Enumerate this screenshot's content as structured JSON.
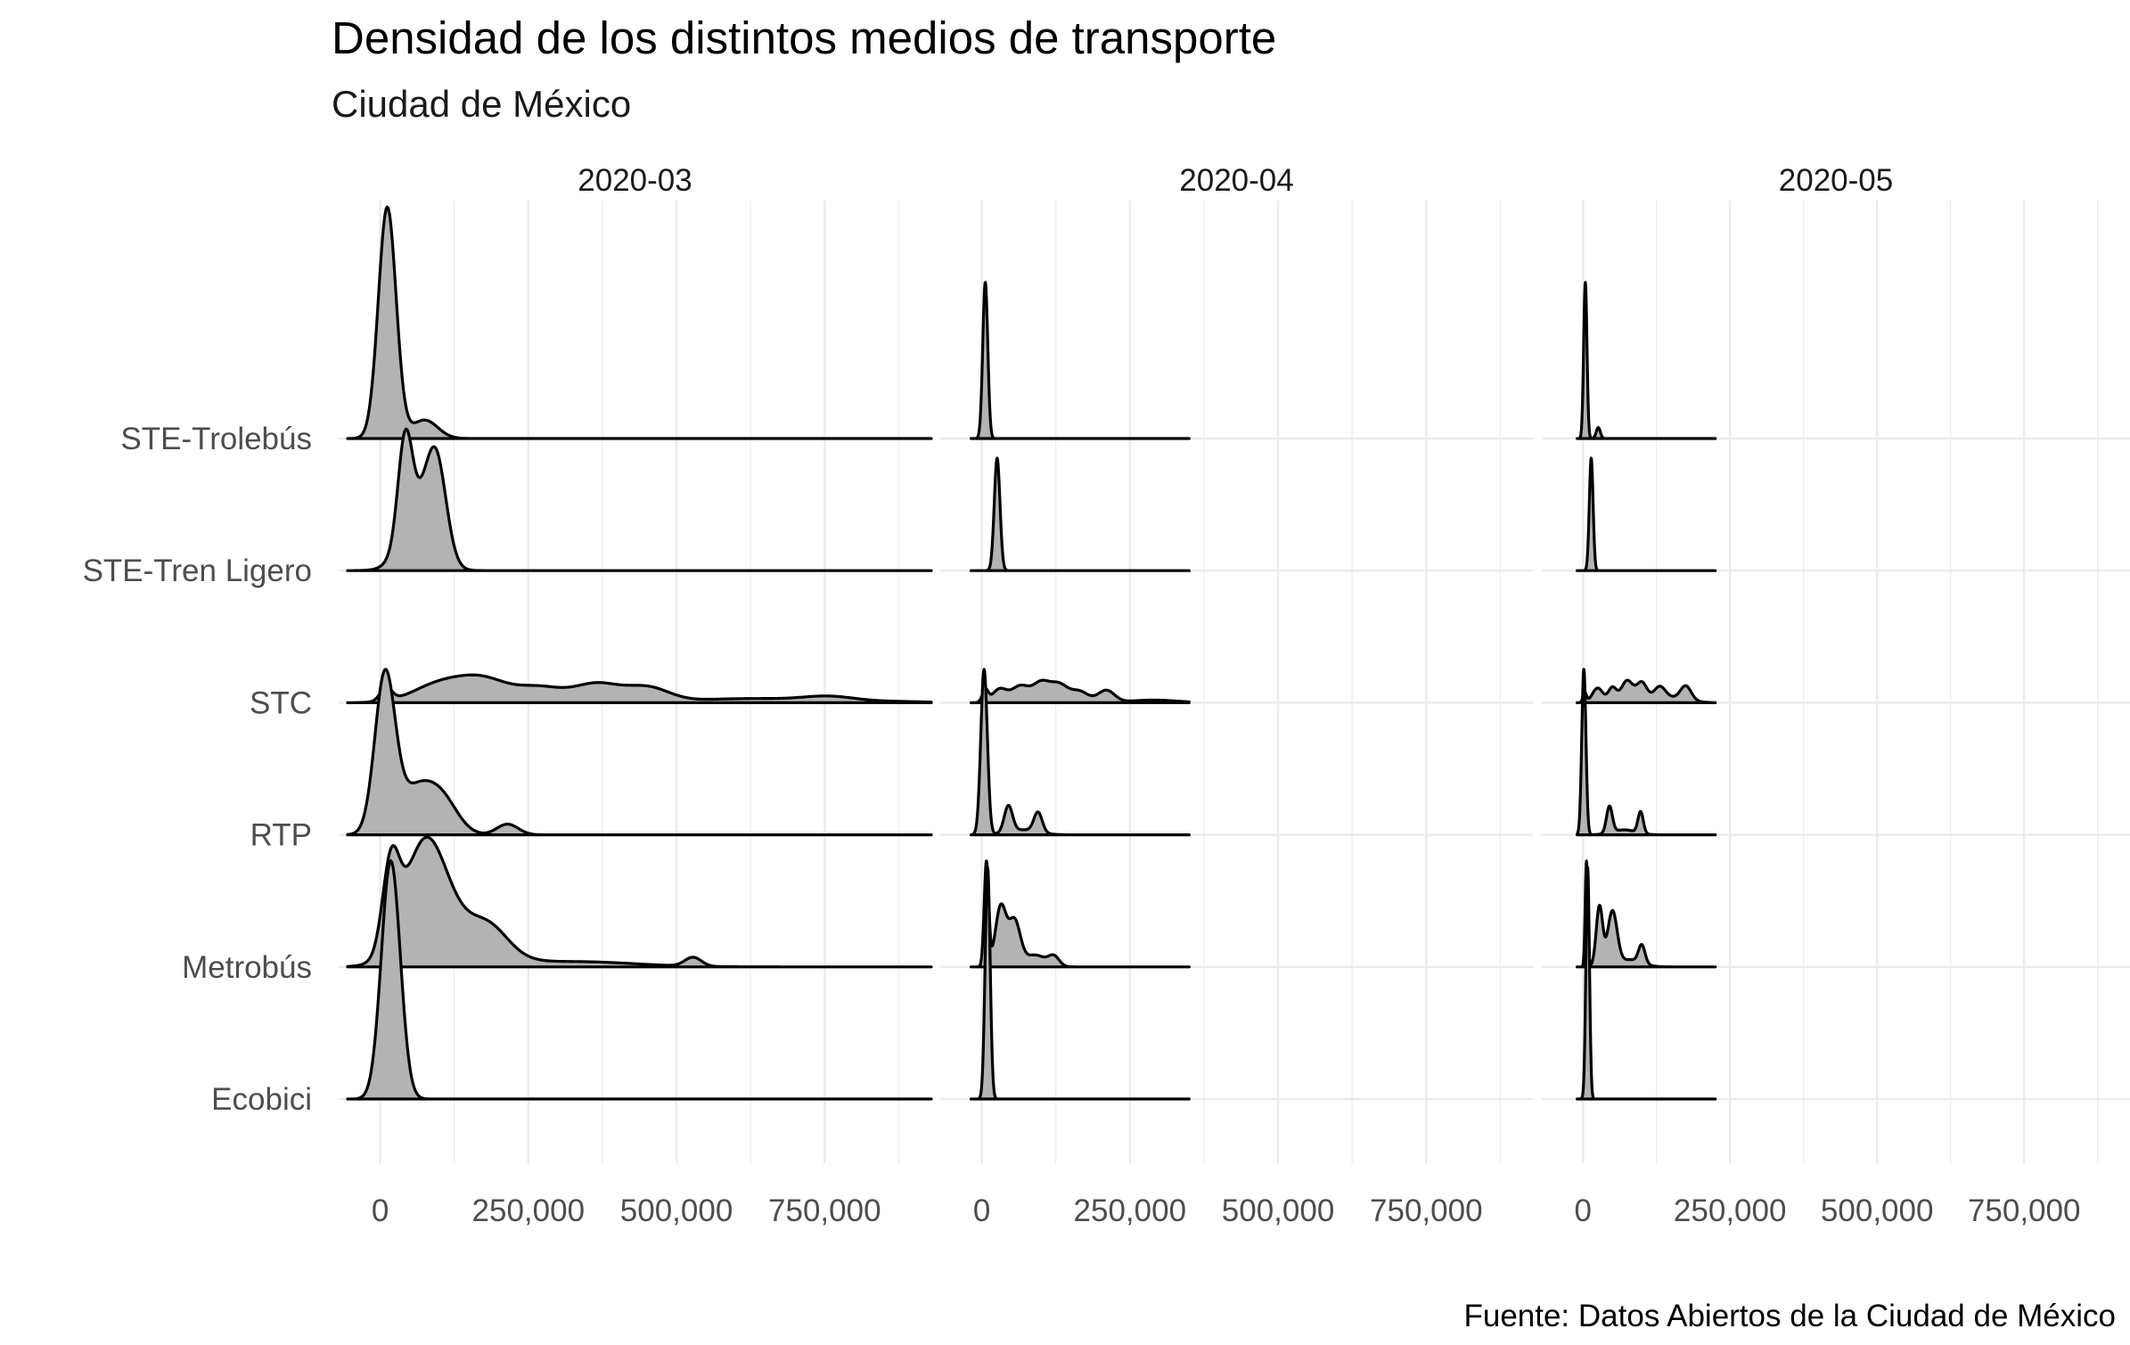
{
  "chart_data": {
    "type": "ridgeline",
    "title": "Densidad de los distintos medios de transporte",
    "subtitle": "Ciudad de México",
    "caption": "Fuente: Datos Abiertos de la Ciudad de México",
    "categories": [
      "Ecobici",
      "Metrobús",
      "RTP",
      "STC",
      "STE-Tren Ligero",
      "STE-Trolebús"
    ],
    "x_ticks": [
      0,
      250000,
      500000,
      750000
    ],
    "x_tick_labels": [
      "0",
      "250,000",
      "500,000",
      "750,000"
    ],
    "xlim": [
      -70000,
      930000
    ],
    "panels": [
      {
        "label": "2020-03",
        "series": [
          {
            "category": "Ecobici",
            "range": [
              -55000,
              930000
            ],
            "height": 1.8,
            "components": [
              [
                18000,
                16000,
                1.0
              ]
            ]
          },
          {
            "category": "Metrobús",
            "range": [
              -55000,
              930000
            ],
            "height": 0.98,
            "components": [
              [
                18000,
                14000,
                0.55
              ],
              [
                75000,
                36000,
                0.72
              ],
              [
                185000,
                32000,
                0.14
              ],
              [
                130000,
                60000,
                0.22
              ],
              [
                330000,
                100000,
                0.035
              ],
              [
                528000,
                14000,
                0.06
              ]
            ]
          },
          {
            "category": "RTP",
            "range": [
              -55000,
              930000
            ],
            "height": 1.25,
            "components": [
              [
                8000,
                17000,
                1.0
              ],
              [
                65000,
                35000,
                0.32
              ],
              [
                110000,
                25000,
                0.13
              ],
              [
                215000,
                18000,
                0.07
              ]
            ]
          },
          {
            "category": "STC",
            "range": [
              -55000,
              930000
            ],
            "height": 0.21,
            "components": [
              [
                10000,
                10000,
                0.52
              ],
              [
                100000,
                45000,
                0.72
              ],
              [
                175000,
                42000,
                0.85
              ],
              [
                270000,
                40000,
                0.58
              ],
              [
                365000,
                38000,
                0.72
              ],
              [
                450000,
                38000,
                0.6
              ],
              [
                575000,
                60000,
                0.12
              ],
              [
                755000,
                45000,
                0.24
              ],
              [
                660000,
                50000,
                0.1
              ],
              [
                860000,
                60000,
                0.05
              ]
            ]
          },
          {
            "category": "STE-Tren Ligero",
            "range": [
              -55000,
              930000
            ],
            "height": 1.07,
            "components": [
              [
                42000,
                12000,
                0.82
              ],
              [
                95000,
                17000,
                0.74
              ],
              [
                65000,
                28000,
                0.5
              ]
            ]
          },
          {
            "category": "STE-Trolebús",
            "range": [
              -55000,
              930000
            ],
            "height": 1.75,
            "components": [
              [
                12000,
                15000,
                1.0
              ],
              [
                75000,
                22000,
                0.08
              ]
            ]
          }
        ]
      },
      {
        "label": "2020-04",
        "series": [
          {
            "category": "Ecobici",
            "range": [
              -18000,
              350000
            ],
            "height": 1.75,
            "components": [
              [
                10000,
                4200,
                1.0
              ]
            ]
          },
          {
            "category": "Metrobús",
            "range": [
              -18000,
              350000
            ],
            "height": 0.8,
            "components": [
              [
                8000,
                3800,
                0.88
              ],
              [
                32000,
                9000,
                0.5
              ],
              [
                55000,
                10000,
                0.38
              ],
              [
                90000,
                18000,
                0.1
              ],
              [
                122000,
                9000,
                0.08
              ]
            ]
          },
          {
            "category": "RTP",
            "range": [
              -18000,
              350000
            ],
            "height": 1.25,
            "components": [
              [
                4000,
                5500,
                1.0
              ],
              [
                45000,
                7000,
                0.16
              ],
              [
                95000,
                7000,
                0.12
              ],
              [
                70000,
                25000,
                0.03
              ]
            ]
          },
          {
            "category": "STC",
            "range": [
              -18000,
              350000
            ],
            "height": 0.17,
            "components": [
              [
                6000,
                5000,
                0.55
              ],
              [
                30000,
                12000,
                0.6
              ],
              [
                65000,
                15000,
                0.75
              ],
              [
                100000,
                14000,
                0.85
              ],
              [
                130000,
                15000,
                0.8
              ],
              [
                165000,
                15000,
                0.5
              ],
              [
                210000,
                14000,
                0.55
              ],
              [
                290000,
                40000,
                0.12
              ]
            ]
          },
          {
            "category": "STE-Tren Ligero",
            "range": [
              -18000,
              350000
            ],
            "height": 0.85,
            "components": [
              [
                26000,
                4800,
                1.0
              ]
            ]
          },
          {
            "category": "STE-Trolebús",
            "range": [
              -18000,
              350000
            ],
            "height": 1.18,
            "components": [
              [
                6000,
                4200,
                1.0
              ]
            ]
          }
        ]
      },
      {
        "label": "2020-05",
        "series": [
          {
            "category": "Ecobici",
            "range": [
              -10000,
              225000
            ],
            "height": 1.75,
            "components": [
              [
                8000,
                3000,
                1.0
              ]
            ]
          },
          {
            "category": "Metrobús",
            "range": [
              -10000,
              225000
            ],
            "height": 0.8,
            "components": [
              [
                6000,
                2200,
                0.88
              ],
              [
                28000,
                5500,
                0.5
              ],
              [
                50000,
                8000,
                0.45
              ],
              [
                100000,
                5500,
                0.15
              ],
              [
                80000,
                20000,
                0.06
              ]
            ]
          },
          {
            "category": "RTP",
            "range": [
              -10000,
              225000
            ],
            "height": 1.25,
            "components": [
              [
                1500,
                3500,
                1.0
              ],
              [
                45000,
                5000,
                0.16
              ],
              [
                98000,
                4500,
                0.13
              ],
              [
                70000,
                20000,
                0.03
              ]
            ]
          },
          {
            "category": "STC",
            "range": [
              -10000,
              225000
            ],
            "height": 0.17,
            "components": [
              [
                3000,
                3000,
                0.4
              ],
              [
                25000,
                9000,
                0.6
              ],
              [
                50000,
                7000,
                0.6
              ],
              [
                75000,
                10000,
                0.9
              ],
              [
                100000,
                9000,
                0.8
              ],
              [
                130000,
                10000,
                0.55
              ],
              [
                175000,
                9000,
                0.55
              ],
              [
                155000,
                25000,
                0.2
              ]
            ]
          },
          {
            "category": "STE-Tren Ligero",
            "range": [
              -10000,
              225000
            ],
            "height": 0.85,
            "components": [
              [
                14000,
                3200,
                1.0
              ]
            ]
          },
          {
            "category": "STE-Trolebús",
            "range": [
              -10000,
              225000
            ],
            "height": 1.18,
            "components": [
              [
                4000,
                2800,
                1.0
              ],
              [
                26000,
                3500,
                0.07
              ]
            ]
          }
        ]
      }
    ]
  }
}
